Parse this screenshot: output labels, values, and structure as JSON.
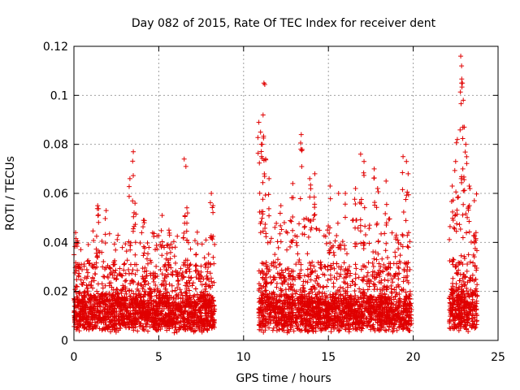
{
  "chart_data": {
    "type": "scatter",
    "title": "Day 082 of 2015, Rate Of TEC Index for receiver dent",
    "xlabel": "GPS time / hours",
    "ylabel": "ROTI / TECUs",
    "xlim": [
      0,
      25
    ],
    "ylim": [
      0,
      0.12
    ],
    "x_ticks": [
      "0",
      "5",
      "10",
      "15",
      "20",
      "25"
    ],
    "y_ticks": [
      "0",
      "0.02",
      "0.04",
      "0.06",
      "0.08",
      "0.1",
      "0.12"
    ],
    "grid": true,
    "marker": "+",
    "color": "#e00000",
    "segments": [
      {
        "x_range": [
          0.0,
          8.3
        ],
        "baseline": [
          0.005,
          0.018
        ],
        "typical_max": 0.045
      },
      {
        "x_range": [
          10.9,
          19.9
        ],
        "baseline": [
          0.005,
          0.018
        ],
        "typical_max": 0.05
      },
      {
        "x_range": [
          22.1,
          23.8
        ],
        "baseline": [
          0.005,
          0.02
        ],
        "typical_max": 0.06
      }
    ],
    "peaks": [
      {
        "x": 0.1,
        "y": 0.044
      },
      {
        "x": 1.4,
        "y": 0.055
      },
      {
        "x": 1.9,
        "y": 0.053
      },
      {
        "x": 3.3,
        "y": 0.066
      },
      {
        "x": 3.5,
        "y": 0.077
      },
      {
        "x": 3.6,
        "y": 0.056
      },
      {
        "x": 4.1,
        "y": 0.049
      },
      {
        "x": 5.2,
        "y": 0.051
      },
      {
        "x": 5.6,
        "y": 0.045
      },
      {
        "x": 6.5,
        "y": 0.074
      },
      {
        "x": 6.6,
        "y": 0.071
      },
      {
        "x": 6.7,
        "y": 0.052
      },
      {
        "x": 8.1,
        "y": 0.06
      },
      {
        "x": 8.2,
        "y": 0.055
      },
      {
        "x": 10.9,
        "y": 0.089
      },
      {
        "x": 11.0,
        "y": 0.085
      },
      {
        "x": 11.1,
        "y": 0.08
      },
      {
        "x": 11.15,
        "y": 0.092
      },
      {
        "x": 11.2,
        "y": 0.105
      },
      {
        "x": 11.3,
        "y": 0.074
      },
      {
        "x": 11.5,
        "y": 0.066
      },
      {
        "x": 12.2,
        "y": 0.055
      },
      {
        "x": 12.9,
        "y": 0.064
      },
      {
        "x": 13.4,
        "y": 0.084
      },
      {
        "x": 13.9,
        "y": 0.066
      },
      {
        "x": 14.2,
        "y": 0.068
      },
      {
        "x": 15.1,
        "y": 0.063
      },
      {
        "x": 15.6,
        "y": 0.06
      },
      {
        "x": 16.0,
        "y": 0.06
      },
      {
        "x": 16.6,
        "y": 0.062
      },
      {
        "x": 16.9,
        "y": 0.076
      },
      {
        "x": 17.1,
        "y": 0.073
      },
      {
        "x": 17.7,
        "y": 0.07
      },
      {
        "x": 17.9,
        "y": 0.062
      },
      {
        "x": 18.4,
        "y": 0.065
      },
      {
        "x": 19.4,
        "y": 0.075
      },
      {
        "x": 19.6,
        "y": 0.073
      },
      {
        "x": 19.7,
        "y": 0.068
      },
      {
        "x": 22.3,
        "y": 0.063
      },
      {
        "x": 22.5,
        "y": 0.073
      },
      {
        "x": 22.6,
        "y": 0.082
      },
      {
        "x": 22.8,
        "y": 0.116
      },
      {
        "x": 22.85,
        "y": 0.112
      },
      {
        "x": 22.9,
        "y": 0.105
      },
      {
        "x": 22.95,
        "y": 0.098
      },
      {
        "x": 23.0,
        "y": 0.087
      },
      {
        "x": 23.1,
        "y": 0.08
      },
      {
        "x": 23.3,
        "y": 0.063
      },
      {
        "x": 23.6,
        "y": 0.057
      },
      {
        "x": 23.7,
        "y": 0.044
      }
    ]
  }
}
